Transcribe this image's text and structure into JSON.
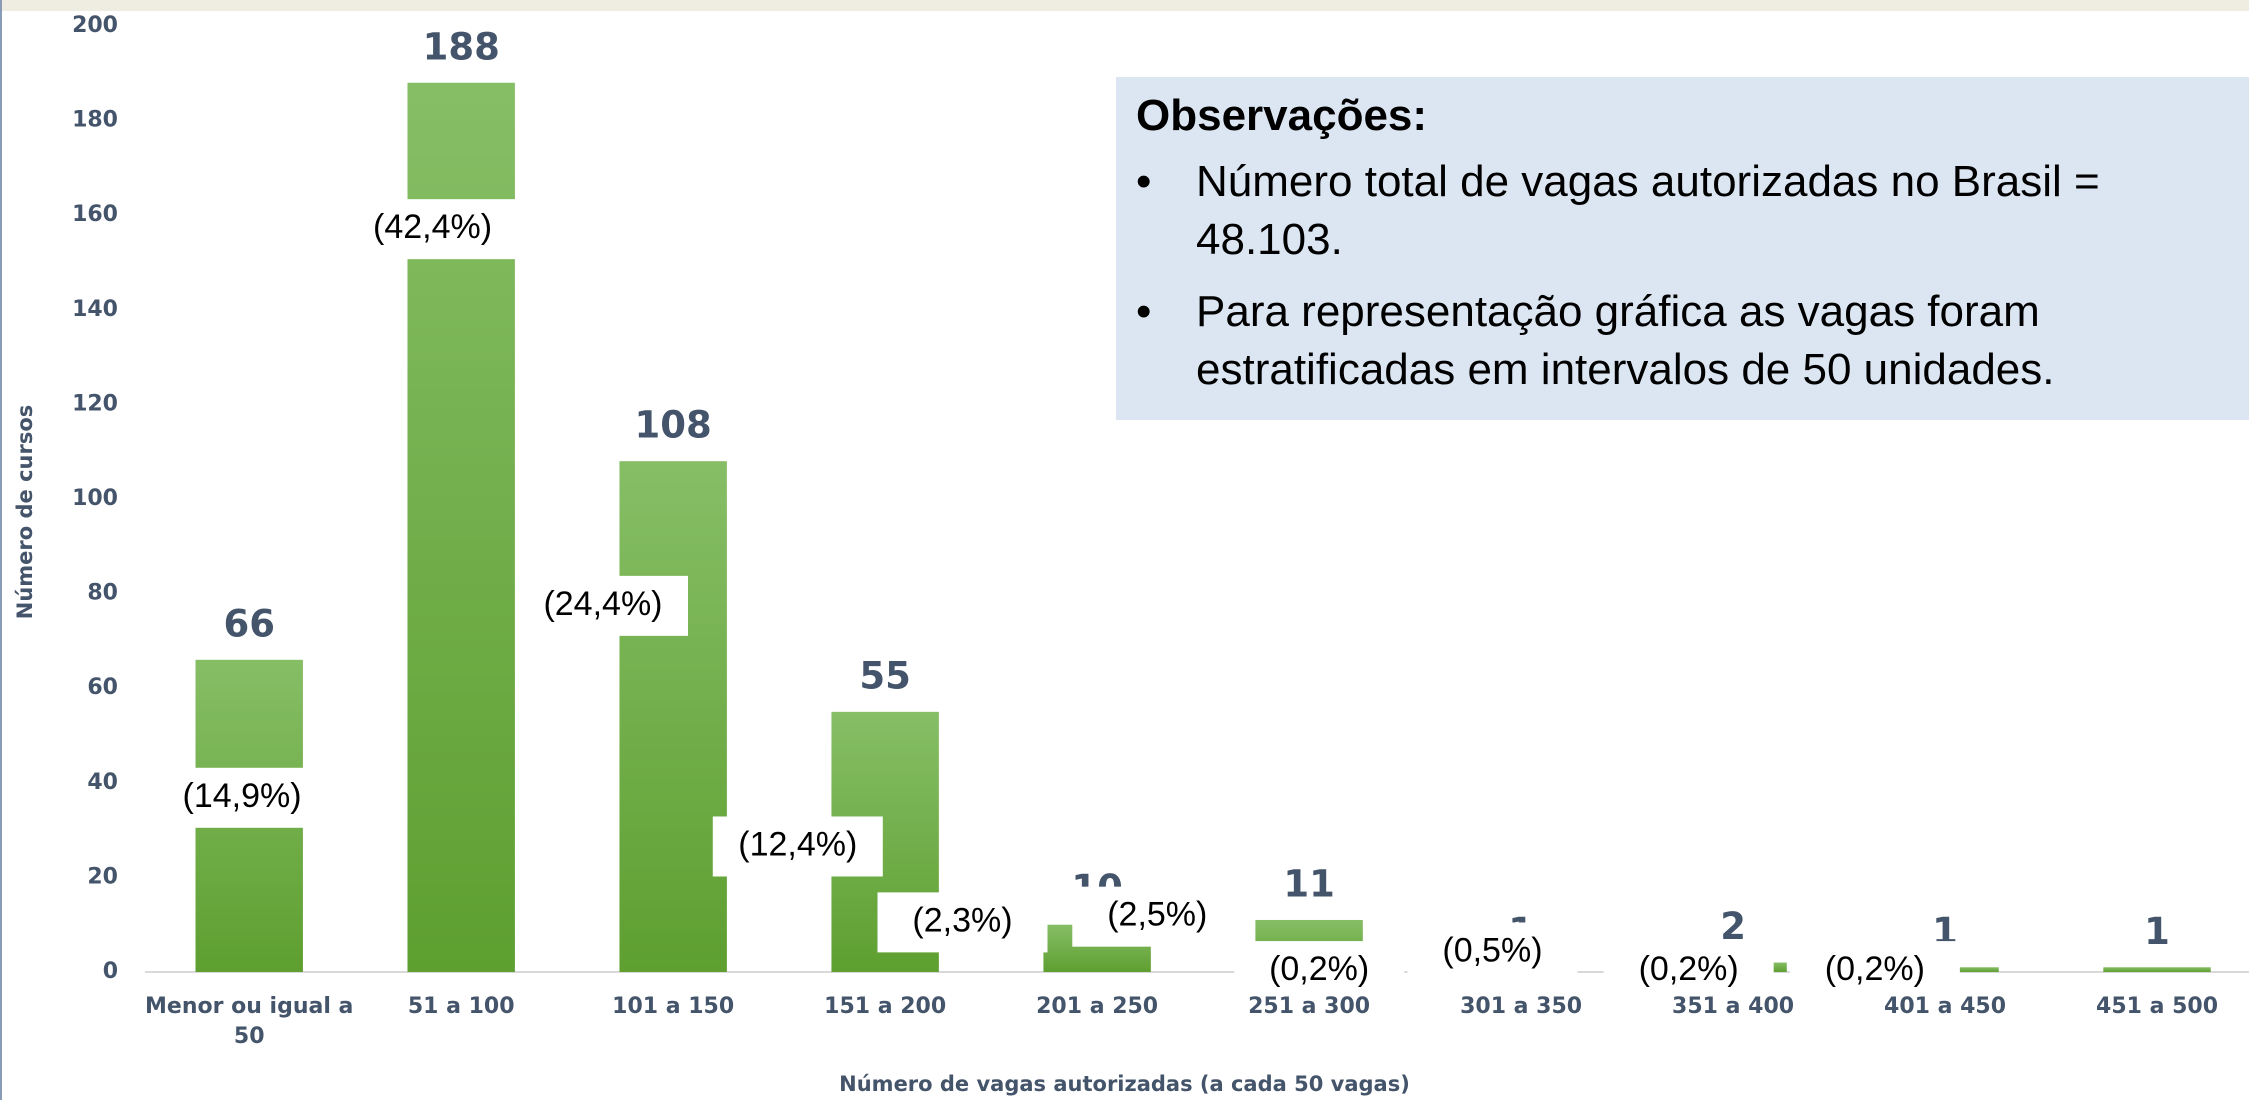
{
  "chart_data": {
    "type": "bar",
    "x_label": "Número de vagas autorizadas (a cada 50 vagas)",
    "y_label": "Número de cursos",
    "categories": [
      "Menor ou igual a 50",
      "51 a 100",
      "101 a 150",
      "151 a 200",
      "201 a 250",
      "251 a 300",
      "301 a 350",
      "351 a 400",
      "401 a 450",
      "451 a 500"
    ],
    "values": [
      66,
      188,
      108,
      55,
      10,
      11,
      1,
      2,
      1,
      1
    ],
    "percentages": [
      14.9,
      42.4,
      24.4,
      12.4,
      2.3,
      2.5,
      0.2,
      0.5,
      0.2,
      0.2
    ],
    "percentage_labels": [
      "(14,9%)",
      "(42,4%)",
      "(24,4%)",
      "(12,4%)",
      "(2,3%)",
      "(2,5%)",
      "(0,2%)",
      "(0,5%)",
      "(0,2%)",
      "(0,2%)"
    ],
    "color": "#6aaa3f",
    "ylim": [
      0,
      200
    ],
    "yticks": [
      0,
      20,
      40,
      60,
      80,
      100,
      120,
      140,
      160,
      180,
      200
    ],
    "annotation": {
      "title": "Observações:",
      "items": [
        "Número total de vagas autorizadas no Brasil = 48.103.",
        "Para representação gráfica as vagas foram estratificadas em intervalos de 50 unidades."
      ]
    }
  }
}
